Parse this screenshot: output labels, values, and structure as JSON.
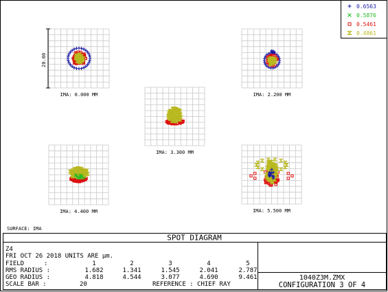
{
  "legend": [
    {
      "label": "0.6563",
      "marker": "plus",
      "color": "#1a1aa6"
    },
    {
      "label": "0.5876",
      "marker": "x",
      "color": "#22bb22"
    },
    {
      "label": "0.5461",
      "marker": "square",
      "color": "#dd1111"
    },
    {
      "label": "0.4861",
      "marker": "hourglass",
      "color": "#b8b820"
    }
  ],
  "scale_label": "20.00",
  "surface_label": "SURFACE: IMA",
  "footer": {
    "title": "SPOT DIAGRAM",
    "lens_name": "Z4",
    "date_line": "FRI OCT 26 2018  UNITS ARE µm.",
    "field_label": "FIELD",
    "rms_label": "RMS RADIUS :",
    "geo_label": "GEO RADIUS :",
    "scale_bar_label": "SCALE BAR  :",
    "scale_bar_value": "20",
    "reference": "REFERENCE  : CHIEF RAY",
    "file_name": "1040Z3M.ZMX",
    "configuration": "CONFIGURATION 3 OF 4"
  },
  "chart_data": {
    "type": "scatter",
    "title": "SPOT DIAGRAM",
    "units": "µm",
    "wavelengths_um": [
      0.6563,
      0.5876,
      0.5461,
      0.4861
    ],
    "fields": [
      1,
      2,
      3,
      4,
      5
    ],
    "field_labels": [
      "IMA: 0.000 MM",
      "IMA: 2.200 MM",
      "IMA: 3.300 MM",
      "IMA: 4.400 MM",
      "IMA: 5.500 MM"
    ],
    "rms_radius": [
      1.682,
      1.341,
      1.545,
      2.041,
      2.787
    ],
    "geo_radius": [
      4.818,
      4.544,
      3.077,
      4.69,
      9.461
    ],
    "scale_bar_um": 20,
    "reference": "CHIEF RAY"
  }
}
